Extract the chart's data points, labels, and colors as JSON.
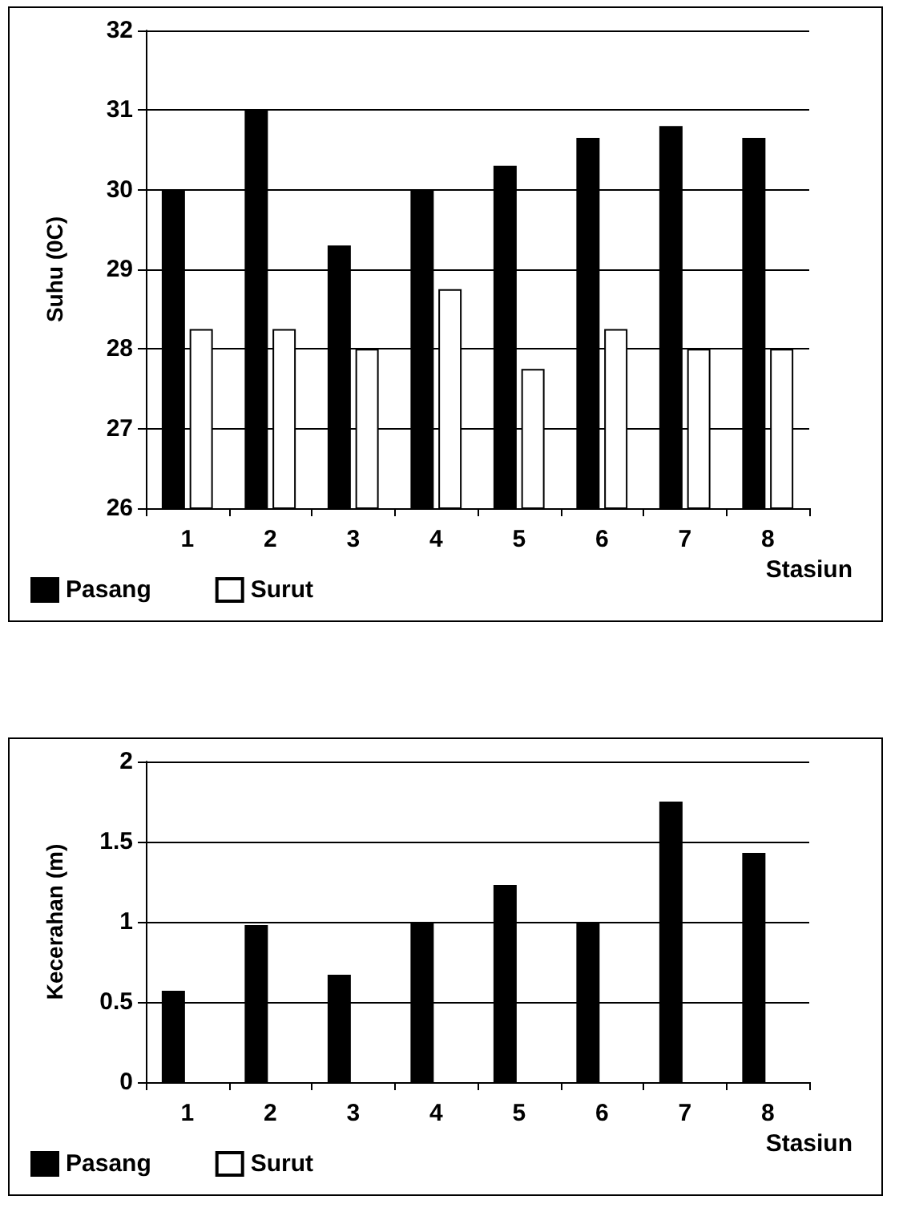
{
  "chart_data": [
    {
      "type": "bar",
      "categories": [
        "1",
        "2",
        "3",
        "4",
        "5",
        "6",
        "7",
        "8"
      ],
      "xlabel": "Stasiun",
      "ylabel": "Suhu (0C)",
      "ylim": [
        26,
        32
      ],
      "yticks": [
        26,
        27,
        28,
        29,
        30,
        31,
        32
      ],
      "grid": "y",
      "legend": "bottom left",
      "series": [
        {
          "name": "Pasang",
          "color": "#000000",
          "values": [
            30,
            31,
            29.3,
            30,
            30.3,
            30.65,
            30.8,
            30.65
          ]
        },
        {
          "name": "Surut",
          "color": "#ffffff",
          "values": [
            28.25,
            28.25,
            28,
            28.75,
            27.75,
            28.25,
            28,
            28
          ]
        }
      ]
    },
    {
      "type": "bar",
      "categories": [
        "1",
        "2",
        "3",
        "4",
        "5",
        "6",
        "7",
        "8"
      ],
      "xlabel": "Stasiun",
      "ylabel": "Kecerahan (m)",
      "ylim": [
        0,
        2
      ],
      "yticks": [
        0,
        0.5,
        1,
        1.5,
        2
      ],
      "grid": "y",
      "legend": "bottom left",
      "series": [
        {
          "name": "Pasang",
          "color": "#000000",
          "values": [
            0.57,
            0.98,
            0.67,
            1.0,
            1.23,
            1.0,
            1.75,
            1.43
          ]
        },
        {
          "name": "Surut",
          "color": "#ffffff",
          "values": [
            null,
            null,
            null,
            null,
            null,
            null,
            null,
            null
          ]
        }
      ]
    }
  ]
}
